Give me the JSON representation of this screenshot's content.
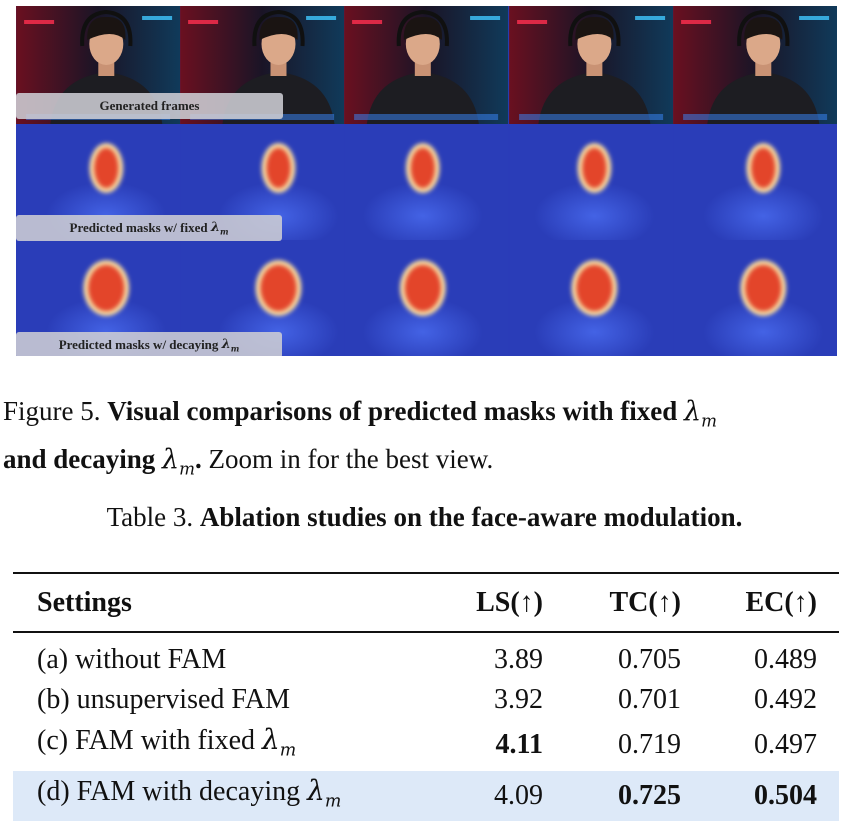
{
  "figure": {
    "row_labels": {
      "frames": "Generated frames",
      "fixed_prefix": "Predicted masks w/ fixed ",
      "decay_prefix": "Predicted masks w/ decaying ",
      "lambda": "λ",
      "lambda_sub": "m"
    },
    "frame_count": 5,
    "colors": {
      "mask_bg": "#2a3db8",
      "mask_face": "#e3452a",
      "mask_halo": "#f5d8a0"
    }
  },
  "figure_caption": {
    "prefix": "Figure 5. ",
    "bold1": "Visual comparisons of predicted masks with fixed ",
    "bold2": "and decaying ",
    "tail": " Zoom in for the best view.",
    "period": "."
  },
  "table_caption": {
    "prefix": "Table 3. ",
    "bold": "Ablation studies on the face-aware modulation."
  },
  "table": {
    "headers": [
      "Settings",
      "LS(↑)",
      "TC(↑)",
      "EC(↑)"
    ],
    "rows": [
      {
        "setting": "(a) without FAM",
        "ls": "3.89",
        "tc": "0.705",
        "ec": "0.489"
      },
      {
        "setting": "(b) unsupervised FAM",
        "ls": "3.92",
        "tc": "0.701",
        "ec": "0.492"
      },
      {
        "setting": "(c) FAM with fixed ",
        "ls": "4.11",
        "tc": "0.719",
        "ec": "0.497"
      },
      {
        "setting": "(d) FAM with decaying ",
        "ls": "4.09",
        "tc": "0.725",
        "ec": "0.504"
      }
    ]
  }
}
